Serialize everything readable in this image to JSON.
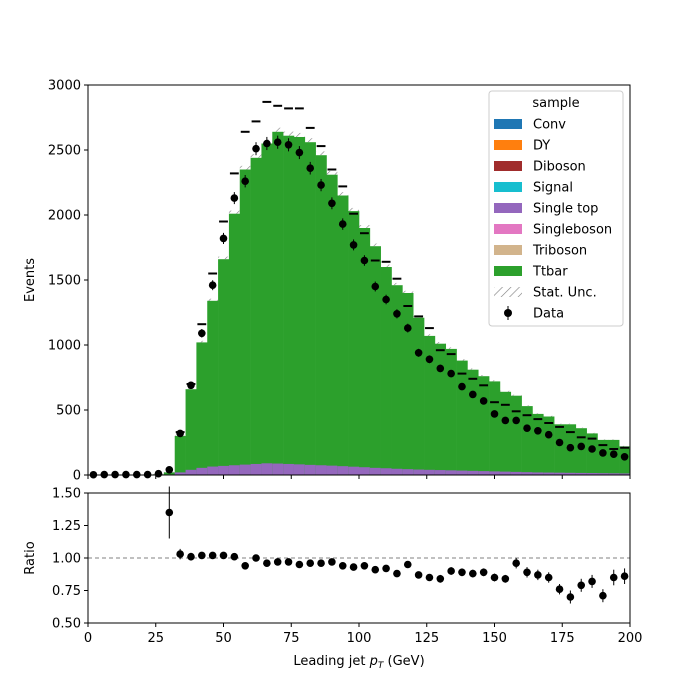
{
  "chart_data": [
    {
      "type": "bar",
      "panel": "main",
      "ylabel": "Events",
      "xlim": [
        0,
        200
      ],
      "ylim": [
        0,
        3000
      ],
      "yticks": [
        0,
        500,
        1000,
        1500,
        2000,
        2500,
        3000
      ],
      "legend": {
        "title": "sample",
        "placement": "top-right",
        "entries": [
          {
            "name": "Conv",
            "color": "#1f77b4"
          },
          {
            "name": "DY",
            "color": "#ff7f0e"
          },
          {
            "name": "Diboson",
            "color": "#a02c2c"
          },
          {
            "name": "Signal",
            "color": "#17becf"
          },
          {
            "name": "Single top",
            "color": "#9467bd"
          },
          {
            "name": "Singleboson",
            "color": "#e377c2"
          },
          {
            "name": "Triboson",
            "color": "#d2b48c"
          },
          {
            "name": "Ttbar",
            "color": "#2ca02c"
          },
          {
            "name": "Stat. Unc.",
            "color": "#8c8c8c"
          },
          {
            "name": "Data",
            "color": "#000000"
          }
        ]
      },
      "bin_edges": [
        0,
        4,
        8,
        12,
        16,
        20,
        24,
        28,
        32,
        36,
        40,
        44,
        48,
        52,
        56,
        60,
        64,
        68,
        72,
        76,
        80,
        84,
        88,
        92,
        96,
        100,
        104,
        108,
        112,
        116,
        120,
        124,
        128,
        132,
        136,
        140,
        144,
        148,
        152,
        156,
        160,
        164,
        168,
        172,
        176,
        180,
        184,
        188,
        192,
        196,
        200
      ],
      "series": [
        {
          "name": "Ttbar",
          "color": "#2ca02c",
          "stack_totals": [
            0,
            0,
            0,
            0,
            0,
            0,
            5,
            20,
            300,
            660,
            1020,
            1340,
            1660,
            2010,
            2350,
            2440,
            2550,
            2640,
            2610,
            2600,
            2560,
            2460,
            2310,
            2150,
            2030,
            1900,
            1760,
            1600,
            1460,
            1400,
            1210,
            1070,
            1010,
            970,
            880,
            810,
            760,
            720,
            640,
            610,
            530,
            470,
            450,
            390,
            390,
            360,
            320,
            270,
            270,
            220
          ],
          "single_top": [
            0,
            0,
            0,
            0,
            0,
            0,
            1,
            4,
            20,
            40,
            55,
            65,
            70,
            75,
            80,
            85,
            90,
            88,
            85,
            82,
            78,
            75,
            72,
            68,
            64,
            60,
            55,
            52,
            48,
            45,
            42,
            40,
            38,
            36,
            34,
            32,
            30,
            28,
            26,
            24,
            22,
            20,
            19,
            18,
            17,
            16,
            15,
            14,
            13,
            12
          ]
        },
        {
          "name": "Data",
          "color": "#000000",
          "centers": [
            2,
            6,
            10,
            14,
            18,
            22,
            26,
            30,
            34,
            38,
            42,
            46,
            50,
            54,
            58,
            62,
            66,
            70,
            74,
            78,
            82,
            86,
            90,
            94,
            98,
            102,
            106,
            110,
            114,
            118,
            122,
            126,
            130,
            134,
            138,
            142,
            146,
            150,
            154,
            158,
            162,
            166,
            170,
            174,
            178,
            182,
            186,
            190,
            194,
            198
          ],
          "values": [
            2,
            3,
            3,
            3,
            3,
            3,
            10,
            40,
            320,
            690,
            1090,
            1460,
            1820,
            2130,
            2260,
            2510,
            2550,
            2560,
            2540,
            2480,
            2360,
            2230,
            2090,
            1930,
            1770,
            1650,
            1450,
            1350,
            1240,
            1130,
            940,
            890,
            820,
            780,
            680,
            620,
            570,
            470,
            420,
            420,
            360,
            340,
            310,
            250,
            210,
            220,
            200,
            170,
            160,
            140
          ],
          "mc_markers": [
            null,
            null,
            null,
            null,
            null,
            null,
            null,
            null,
            330,
            700,
            1160,
            1550,
            1950,
            2320,
            2640,
            2720,
            2870,
            2840,
            2820,
            2820,
            2670,
            2530,
            2350,
            2220,
            2010,
            1860,
            1650,
            1640,
            1510,
            1300,
            1220,
            1130,
            960,
            930,
            780,
            740,
            690,
            560,
            540,
            490,
            460,
            430,
            400,
            370,
            330,
            290,
            280,
            230,
            200,
            210
          ]
        }
      ]
    },
    {
      "type": "scatter",
      "panel": "ratio",
      "xlabel": "Leading jet  pT (GeV)",
      "ylabel": "Ratio",
      "xlim": [
        0,
        200
      ],
      "ylim": [
        0.5,
        1.5
      ],
      "xticks": [
        0,
        25,
        50,
        75,
        100,
        125,
        150,
        175,
        200
      ],
      "yticks": [
        "0.50",
        "0.75",
        "1.00",
        "1.25",
        "1.50"
      ],
      "reference_line": 1.0,
      "x": [
        30,
        34,
        38,
        42,
        46,
        50,
        54,
        58,
        62,
        66,
        70,
        74,
        78,
        82,
        86,
        90,
        94,
        98,
        102,
        106,
        110,
        114,
        118,
        122,
        126,
        130,
        134,
        138,
        142,
        146,
        150,
        154,
        158,
        162,
        166,
        170,
        174,
        178,
        182,
        186,
        190,
        194,
        198
      ],
      "y": [
        1.35,
        1.03,
        1.01,
        1.02,
        1.02,
        1.02,
        1.01,
        0.94,
        1.0,
        0.96,
        0.97,
        0.97,
        0.95,
        0.96,
        0.96,
        0.97,
        0.94,
        0.93,
        0.94,
        0.91,
        0.92,
        0.88,
        0.95,
        0.87,
        0.85,
        0.84,
        0.9,
        0.89,
        0.88,
        0.89,
        0.85,
        0.84,
        0.96,
        0.89,
        0.87,
        0.85,
        0.76,
        0.7,
        0.79,
        0.82,
        0.71,
        0.85,
        0.86
      ],
      "yerr": [
        0.2,
        0.04,
        0.03,
        0.02,
        0.02,
        0.02,
        0.02,
        0.02,
        0.02,
        0.02,
        0.02,
        0.02,
        0.02,
        0.02,
        0.02,
        0.02,
        0.02,
        0.02,
        0.02,
        0.02,
        0.02,
        0.02,
        0.02,
        0.02,
        0.02,
        0.03,
        0.03,
        0.03,
        0.03,
        0.03,
        0.03,
        0.03,
        0.04,
        0.04,
        0.04,
        0.04,
        0.04,
        0.05,
        0.05,
        0.05,
        0.05,
        0.06,
        0.06
      ]
    }
  ]
}
